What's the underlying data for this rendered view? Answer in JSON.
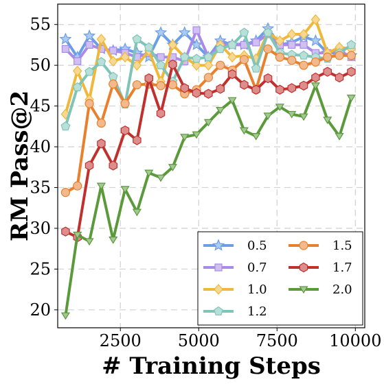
{
  "chart_data": {
    "type": "line",
    "xlabel": "# Training Steps",
    "ylabel": "RM Pass@2",
    "xlim": [
      500,
      10300
    ],
    "ylim": [
      17.8,
      57.5
    ],
    "xticks": [
      2500,
      5000,
      7500,
      10000
    ],
    "yticks": [
      20,
      25,
      30,
      35,
      40,
      45,
      50,
      55
    ],
    "grid": true,
    "legend_position": "bottom-right",
    "x": [
      750,
      1130,
      1510,
      1890,
      2270,
      2650,
      3030,
      3410,
      3790,
      4170,
      4550,
      4930,
      5310,
      5690,
      6070,
      6450,
      6830,
      7210,
      7590,
      7970,
      8350,
      8730,
      9110,
      9490,
      9870
    ],
    "series": [
      {
        "name": "0.5",
        "color": "#6a9ee6",
        "marker": "star",
        "values": [
          53.2,
          51.0,
          53.6,
          52.0,
          51.8,
          52.0,
          51.5,
          51.0,
          54.0,
          52.5,
          54.0,
          52.5,
          51.0,
          53.0,
          52.5,
          52.5,
          53.0,
          54.5,
          52.5,
          52.8,
          53.5,
          53.0,
          51.5,
          51.5,
          51.2
        ]
      },
      {
        "name": "0.7",
        "color": "#a98ae8",
        "marker": "square",
        "values": [
          52.0,
          50.5,
          52.5,
          52.0,
          51.8,
          51.5,
          51.0,
          51.5,
          51.0,
          51.0,
          50.5,
          54.3,
          51.0,
          52.5,
          52.5,
          52.5,
          52.8,
          53.8,
          52.5,
          52.5,
          52.5,
          51.5,
          51.5,
          51.8,
          51.0
        ]
      },
      {
        "name": "1.0",
        "color": "#f0b83a",
        "marker": "diamond",
        "values": [
          44.0,
          49.3,
          45.8,
          53.2,
          50.5,
          51.0,
          50.0,
          51.8,
          48.0,
          52.5,
          51.0,
          50.0,
          50.0,
          52.5,
          51.0,
          51.2,
          50.8,
          54.0,
          53.0,
          53.8,
          53.8,
          55.6,
          51.5,
          52.2,
          52.0
        ]
      },
      {
        "name": "1.2",
        "color": "#7ec4b8",
        "marker": "pentagon",
        "values": [
          42.5,
          47.3,
          49.2,
          50.4,
          48.6,
          45.2,
          53.2,
          52.2,
          50.0,
          48.0,
          51.0,
          50.8,
          51.0,
          52.0,
          52.5,
          54.0,
          49.6,
          54.0,
          51.5,
          51.3,
          51.2,
          51.0,
          50.8,
          51.5,
          52.5
        ]
      },
      {
        "name": "1.5",
        "color": "#e8802d",
        "marker": "circle",
        "values": [
          34.4,
          35.2,
          45.3,
          42.9,
          47.7,
          45.3,
          47.6,
          47.7,
          47.5,
          47.6,
          46.5,
          47.0,
          48.5,
          50.0,
          49.4,
          50.7,
          47.0,
          52.0,
          51.0,
          50.6,
          50.0,
          50.4,
          51.0,
          51.2,
          51.2
        ]
      },
      {
        "name": "1.7",
        "color": "#c0302d",
        "marker": "hexagon",
        "values": [
          29.6,
          28.9,
          37.7,
          40.4,
          37.7,
          42.0,
          40.8,
          48.4,
          44.1,
          50.1,
          47.2,
          46.6,
          46.5,
          47.1,
          48.9,
          47.6,
          47.0,
          48.4,
          47.0,
          47.2,
          47.5,
          48.5,
          49.2,
          48.5,
          49.2
        ]
      },
      {
        "name": "2.0",
        "color": "#5a9a3a",
        "marker": "triangle-down",
        "values": [
          19.3,
          29.2,
          28.4,
          35.2,
          28.6,
          34.8,
          32.0,
          36.8,
          36.2,
          37.5,
          41.2,
          41.5,
          43.0,
          44.5,
          45.7,
          42.0,
          41.3,
          43.8,
          44.9,
          44.0,
          43.7,
          47.5,
          43.3,
          41.3,
          46.0
        ]
      }
    ]
  }
}
